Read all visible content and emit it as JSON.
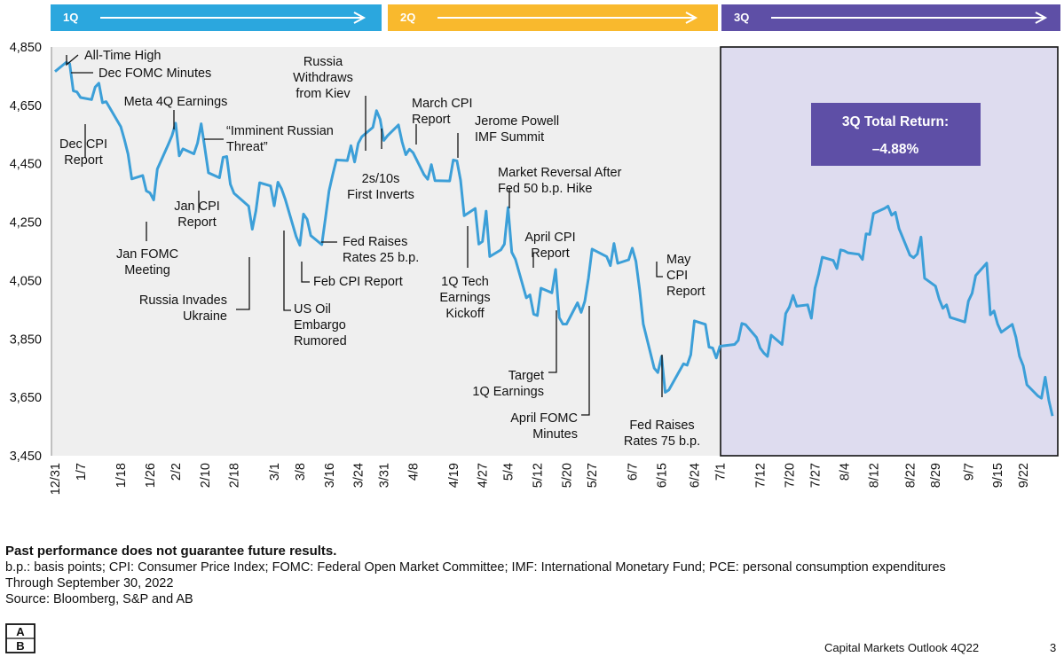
{
  "quarters": [
    {
      "label": "1Q",
      "color": "#2BA7DE"
    },
    {
      "label": "2Q",
      "color": "#F9B92D"
    },
    {
      "label": "3Q",
      "color": "#5E4FA6"
    }
  ],
  "chart_data": {
    "type": "line",
    "line_color": "#3C9FD8",
    "plot_bg": "#EFEFEF",
    "q3_shade": "#DEDCEF",
    "ylim": [
      3450,
      4850
    ],
    "yticks": [
      "4,850",
      "4,650",
      "4,450",
      "4,250",
      "4,050",
      "3,850",
      "3,650",
      "3,450"
    ],
    "ytick_values": [
      4850,
      4650,
      4450,
      4250,
      4050,
      3850,
      3650,
      3450
    ],
    "x_start": "12/31",
    "x_end": "9/30",
    "xticks": [
      "12/31",
      "1/7",
      "1/18",
      "1/26",
      "2/2",
      "2/10",
      "2/18",
      "3/1",
      "3/8",
      "3/16",
      "3/24",
      "3/31",
      "4/8",
      "4/19",
      "4/27",
      "5/4",
      "5/12",
      "5/20",
      "5/27",
      "6/7",
      "6/15",
      "6/24",
      "7/1",
      "7/12",
      "7/20",
      "7/27",
      "8/4",
      "8/12",
      "8/22",
      "8/29",
      "9/7",
      "9/15",
      "9/22"
    ],
    "series": [
      {
        "points": [
          [
            "12/31",
            4766
          ],
          [
            "1/3",
            4797
          ],
          [
            "1/4",
            4793
          ],
          [
            "1/5",
            4700
          ],
          [
            "1/6",
            4696
          ],
          [
            "1/7",
            4677
          ],
          [
            "1/10",
            4670
          ],
          [
            "1/11",
            4713
          ],
          [
            "1/12",
            4726
          ],
          [
            "1/13",
            4659
          ],
          [
            "1/14",
            4663
          ],
          [
            "1/18",
            4577
          ],
          [
            "1/19",
            4533
          ],
          [
            "1/20",
            4483
          ],
          [
            "1/21",
            4398
          ],
          [
            "1/24",
            4410
          ],
          [
            "1/25",
            4357
          ],
          [
            "1/26",
            4350
          ],
          [
            "1/27",
            4326
          ],
          [
            "1/28",
            4432
          ],
          [
            "1/31",
            4516
          ],
          [
            "2/1",
            4546
          ],
          [
            "2/2",
            4589
          ],
          [
            "2/3",
            4477
          ],
          [
            "2/4",
            4501
          ],
          [
            "2/7",
            4484
          ],
          [
            "2/8",
            4521
          ],
          [
            "2/9",
            4587
          ],
          [
            "2/10",
            4504
          ],
          [
            "2/11",
            4419
          ],
          [
            "2/14",
            4402
          ],
          [
            "2/15",
            4472
          ],
          [
            "2/16",
            4475
          ],
          [
            "2/17",
            4380
          ],
          [
            "2/18",
            4349
          ],
          [
            "2/22",
            4305
          ],
          [
            "2/23",
            4226
          ],
          [
            "2/24",
            4289
          ],
          [
            "2/25",
            4385
          ],
          [
            "2/28",
            4374
          ],
          [
            "3/1",
            4306
          ],
          [
            "3/2",
            4387
          ],
          [
            "3/3",
            4364
          ],
          [
            "3/4",
            4329
          ],
          [
            "3/7",
            4201
          ],
          [
            "3/8",
            4171
          ],
          [
            "3/9",
            4278
          ],
          [
            "3/10",
            4260
          ],
          [
            "3/11",
            4204
          ],
          [
            "3/14",
            4173
          ],
          [
            "3/15",
            4263
          ],
          [
            "3/16",
            4357
          ],
          [
            "3/17",
            4412
          ],
          [
            "3/18",
            4463
          ],
          [
            "3/21",
            4461
          ],
          [
            "3/22",
            4512
          ],
          [
            "3/23",
            4456
          ],
          [
            "3/24",
            4520
          ],
          [
            "3/25",
            4543
          ],
          [
            "3/28",
            4575
          ],
          [
            "3/29",
            4632
          ],
          [
            "3/30",
            4602
          ],
          [
            "3/31",
            4530
          ],
          [
            "4/1",
            4546
          ],
          [
            "4/4",
            4583
          ],
          [
            "4/5",
            4525
          ],
          [
            "4/6",
            4481
          ],
          [
            "4/7",
            4500
          ],
          [
            "4/8",
            4488
          ],
          [
            "4/11",
            4413
          ],
          [
            "4/12",
            4397
          ],
          [
            "4/13",
            4447
          ],
          [
            "4/14",
            4392
          ],
          [
            "4/18",
            4391
          ],
          [
            "4/19",
            4463
          ],
          [
            "4/20",
            4460
          ],
          [
            "4/21",
            4394
          ],
          [
            "4/22",
            4272
          ],
          [
            "4/25",
            4297
          ],
          [
            "4/26",
            4175
          ],
          [
            "4/27",
            4184
          ],
          [
            "4/28",
            4288
          ],
          [
            "4/29",
            4132
          ],
          [
            "5/2",
            4155
          ],
          [
            "5/3",
            4175
          ],
          [
            "5/4",
            4300
          ],
          [
            "5/5",
            4147
          ],
          [
            "5/6",
            4123
          ],
          [
            "5/9",
            3991
          ],
          [
            "5/10",
            4001
          ],
          [
            "5/11",
            3935
          ],
          [
            "5/12",
            3930
          ],
          [
            "5/13",
            4024
          ],
          [
            "5/16",
            4008
          ],
          [
            "5/17",
            4088
          ],
          [
            "5/18",
            3923
          ],
          [
            "5/19",
            3901
          ],
          [
            "5/20",
            3901
          ],
          [
            "5/23",
            3974
          ],
          [
            "5/24",
            3941
          ],
          [
            "5/25",
            3979
          ],
          [
            "5/26",
            4058
          ],
          [
            "5/27",
            4158
          ],
          [
            "5/31",
            4132
          ],
          [
            "6/1",
            4101
          ],
          [
            "6/2",
            4177
          ],
          [
            "6/3",
            4109
          ],
          [
            "6/6",
            4121
          ],
          [
            "6/7",
            4161
          ],
          [
            "6/8",
            4116
          ],
          [
            "6/9",
            4018
          ],
          [
            "6/10",
            3901
          ],
          [
            "6/13",
            3750
          ],
          [
            "6/14",
            3735
          ],
          [
            "6/15",
            3790
          ],
          [
            "6/16",
            3667
          ],
          [
            "6/17",
            3675
          ],
          [
            "6/21",
            3765
          ],
          [
            "6/22",
            3760
          ],
          [
            "6/23",
            3796
          ],
          [
            "6/24",
            3912
          ],
          [
            "6/27",
            3900
          ],
          [
            "6/28",
            3822
          ],
          [
            "6/29",
            3819
          ],
          [
            "6/30",
            3785
          ],
          [
            "7/1",
            3825
          ],
          [
            "7/5",
            3831
          ],
          [
            "7/6",
            3845
          ],
          [
            "7/7",
            3903
          ],
          [
            "7/8",
            3899
          ],
          [
            "7/11",
            3855
          ],
          [
            "7/12",
            3819
          ],
          [
            "7/13",
            3802
          ],
          [
            "7/14",
            3790
          ],
          [
            "7/15",
            3863
          ],
          [
            "7/18",
            3831
          ],
          [
            "7/19",
            3937
          ],
          [
            "7/20",
            3960
          ],
          [
            "7/21",
            3999
          ],
          [
            "7/22",
            3962
          ],
          [
            "7/25",
            3967
          ],
          [
            "7/26",
            3921
          ],
          [
            "7/27",
            4024
          ],
          [
            "7/28",
            4072
          ],
          [
            "7/29",
            4130
          ],
          [
            "8/1",
            4119
          ],
          [
            "8/2",
            4091
          ],
          [
            "8/3",
            4155
          ],
          [
            "8/4",
            4152
          ],
          [
            "8/5",
            4145
          ],
          [
            "8/8",
            4140
          ],
          [
            "8/9",
            4122
          ],
          [
            "8/10",
            4210
          ],
          [
            "8/11",
            4208
          ],
          [
            "8/12",
            4280
          ],
          [
            "8/15",
            4297
          ],
          [
            "8/16",
            4305
          ],
          [
            "8/17",
            4274
          ],
          [
            "8/18",
            4284
          ],
          [
            "8/19",
            4228
          ],
          [
            "8/22",
            4137
          ],
          [
            "8/23",
            4128
          ],
          [
            "8/24",
            4141
          ],
          [
            "8/25",
            4199
          ],
          [
            "8/26",
            4058
          ],
          [
            "8/29",
            4031
          ],
          [
            "8/30",
            3986
          ],
          [
            "8/31",
            3955
          ],
          [
            "9/1",
            3967
          ],
          [
            "9/2",
            3924
          ],
          [
            "9/6",
            3908
          ],
          [
            "9/7",
            3980
          ],
          [
            "9/8",
            4006
          ],
          [
            "9/9",
            4067
          ],
          [
            "9/12",
            4110
          ],
          [
            "9/13",
            3933
          ],
          [
            "9/14",
            3946
          ],
          [
            "9/15",
            3901
          ],
          [
            "9/16",
            3873
          ],
          [
            "9/19",
            3900
          ],
          [
            "9/20",
            3856
          ],
          [
            "9/21",
            3790
          ],
          [
            "9/22",
            3758
          ],
          [
            "9/23",
            3693
          ],
          [
            "9/26",
            3655
          ],
          [
            "9/27",
            3647
          ],
          [
            "9/28",
            3719
          ],
          [
            "9/29",
            3640
          ],
          [
            "9/30",
            3586
          ]
        ]
      }
    ],
    "annotations": [
      {
        "id": "all-time-high",
        "lines": [
          "All-Time High"
        ]
      },
      {
        "id": "dec-fomc-minutes",
        "lines": [
          "Dec FOMC Minutes"
        ]
      },
      {
        "id": "dec-cpi-report",
        "lines": [
          "Dec CPI",
          "Report"
        ]
      },
      {
        "id": "meta-4q-earnings",
        "lines": [
          "Meta 4Q Earnings"
        ]
      },
      {
        "id": "jan-fomc-meeting",
        "lines": [
          "Jan FOMC",
          "Meeting"
        ]
      },
      {
        "id": "jan-cpi-report",
        "lines": [
          "Jan CPI",
          "Report"
        ]
      },
      {
        "id": "imminent-russian-threat",
        "lines": [
          "“Imminent Russian",
          "Threat”"
        ]
      },
      {
        "id": "russia-invades-ukraine",
        "lines": [
          "Russia Invades",
          "Ukraine"
        ]
      },
      {
        "id": "us-oil-embargo",
        "lines": [
          "US Oil",
          "Embargo",
          "Rumored"
        ]
      },
      {
        "id": "feb-cpi-report",
        "lines": [
          "Feb CPI Report"
        ]
      },
      {
        "id": "fed-raises-25",
        "lines": [
          "Fed Raises",
          "Rates 25 b.p."
        ]
      },
      {
        "id": "russia-withdraws",
        "lines": [
          "Russia",
          "Withdraws",
          "from Kiev"
        ]
      },
      {
        "id": "first-inverts",
        "lines": [
          "2s/10s",
          "First Inverts"
        ]
      },
      {
        "id": "march-cpi-report",
        "lines": [
          "March CPI",
          "Report"
        ]
      },
      {
        "id": "powell-imf",
        "lines": [
          "Jerome Powell",
          "IMF Summit"
        ]
      },
      {
        "id": "1q-tech-earnings",
        "lines": [
          "1Q Tech",
          "Earnings",
          "Kickoff"
        ]
      },
      {
        "id": "market-reversal",
        "lines": [
          "Market Reversal After",
          "Fed 50 b.p. Hike"
        ]
      },
      {
        "id": "april-cpi-report",
        "lines": [
          "April CPI",
          "Report"
        ]
      },
      {
        "id": "target-earnings",
        "lines": [
          "Target",
          "1Q Earnings"
        ]
      },
      {
        "id": "april-fomc-minutes",
        "lines": [
          "April FOMC",
          "Minutes"
        ]
      },
      {
        "id": "may-cpi-report",
        "lines": [
          "May",
          "CPI",
          "Report"
        ]
      },
      {
        "id": "fed-raises-75",
        "lines": [
          "Fed Raises",
          "Rates 75 b.p."
        ]
      }
    ],
    "callout": {
      "title": "3Q Total Return:",
      "value": "–4.88%",
      "color": "#5E4FA6"
    }
  },
  "notes": {
    "disclaimer": "Past performance does not guarantee future results.",
    "abbreviations": "b.p.: basis points; CPI: Consumer Price Index; FOMC: Federal Open Market Committee; IMF: International Monetary Fund; PCE: personal consumption expenditures",
    "through": "Through September 30, 2022",
    "source": "Source: Bloomberg, S&P and AB"
  },
  "footer": {
    "title": "Capital Markets Outlook 4Q22",
    "page": "3",
    "logo_letters": [
      "A",
      "B"
    ]
  }
}
